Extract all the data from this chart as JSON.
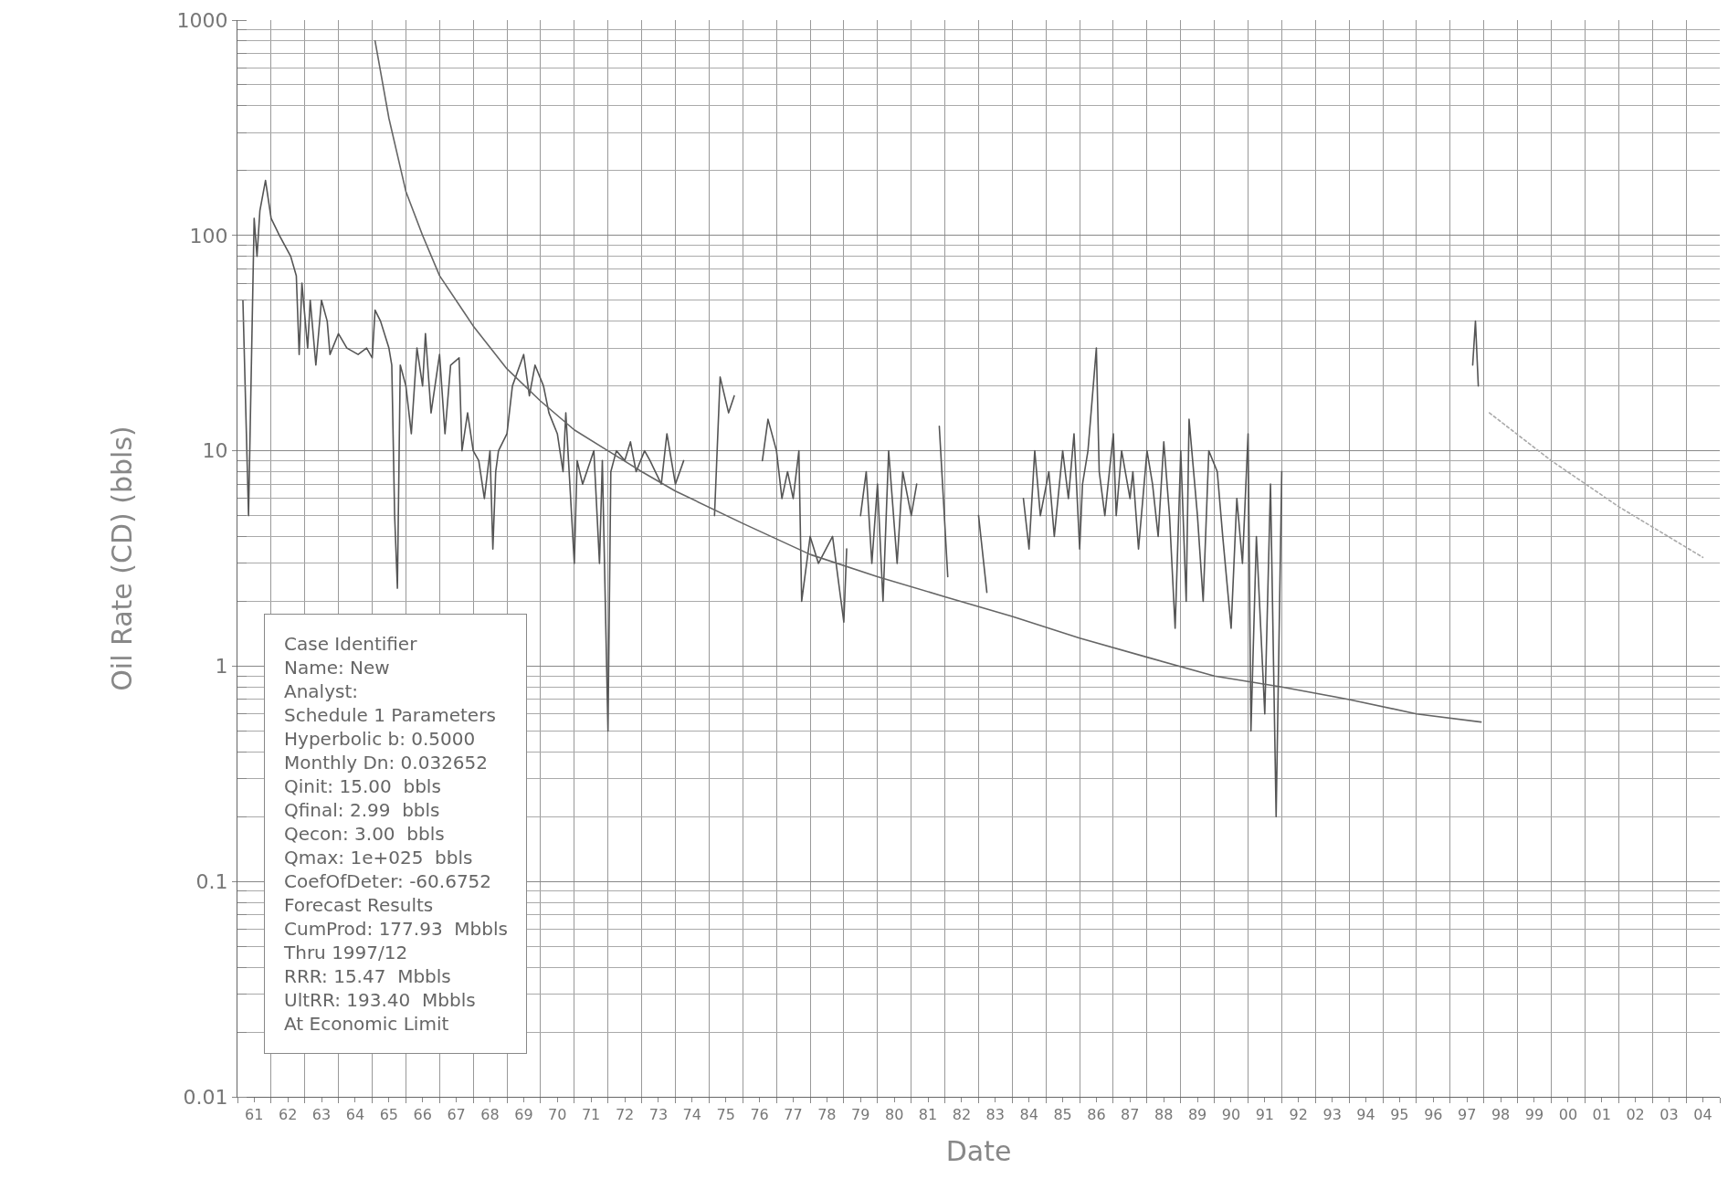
{
  "chart_data": {
    "type": "line",
    "xlabel": "Date",
    "ylabel": "Oil Rate (CD) (bbls)",
    "log": "y",
    "grid": true,
    "marker": "none",
    "xlim": [
      "1961-01",
      "2005-01"
    ],
    "xticks": [
      {
        "value": "1961-07",
        "label": "61"
      },
      {
        "value": "1962-07",
        "label": "62"
      },
      {
        "value": "1963-07",
        "label": "63"
      },
      {
        "value": "1964-07",
        "label": "64"
      },
      {
        "value": "1965-07",
        "label": "65"
      },
      {
        "value": "1966-07",
        "label": "66"
      },
      {
        "value": "1967-07",
        "label": "67"
      },
      {
        "value": "1968-07",
        "label": "68"
      },
      {
        "value": "1969-07",
        "label": "69"
      },
      {
        "value": "1970-07",
        "label": "70"
      },
      {
        "value": "1971-07",
        "label": "71"
      },
      {
        "value": "1972-07",
        "label": "72"
      },
      {
        "value": "1973-07",
        "label": "73"
      },
      {
        "value": "1974-07",
        "label": "74"
      },
      {
        "value": "1975-07",
        "label": "75"
      },
      {
        "value": "1976-07",
        "label": "76"
      },
      {
        "value": "1977-07",
        "label": "77"
      },
      {
        "value": "1978-07",
        "label": "78"
      },
      {
        "value": "1979-07",
        "label": "79"
      },
      {
        "value": "1980-07",
        "label": "80"
      },
      {
        "value": "1981-07",
        "label": "81"
      },
      {
        "value": "1982-07",
        "label": "82"
      },
      {
        "value": "1983-07",
        "label": "83"
      },
      {
        "value": "1984-07",
        "label": "84"
      },
      {
        "value": "1985-07",
        "label": "85"
      },
      {
        "value": "1986-07",
        "label": "86"
      },
      {
        "value": "1987-07",
        "label": "87"
      },
      {
        "value": "1988-07",
        "label": "88"
      },
      {
        "value": "1989-07",
        "label": "89"
      },
      {
        "value": "1990-07",
        "label": "90"
      },
      {
        "value": "1991-07",
        "label": "91"
      },
      {
        "value": "1992-07",
        "label": "92"
      },
      {
        "value": "1993-07",
        "label": "93"
      },
      {
        "value": "1994-07",
        "label": "94"
      },
      {
        "value": "1995-07",
        "label": "95"
      },
      {
        "value": "1996-07",
        "label": "96"
      },
      {
        "value": "1997-07",
        "label": "97"
      },
      {
        "value": "1998-07",
        "label": "98"
      },
      {
        "value": "1999-07",
        "label": "99"
      },
      {
        "value": "2000-07",
        "label": "00"
      },
      {
        "value": "2001-07",
        "label": "01"
      },
      {
        "value": "2002-07",
        "label": "02"
      },
      {
        "value": "2003-07",
        "label": "03"
      },
      {
        "value": "2004-07",
        "label": "04"
      }
    ],
    "ylim": [
      0.01,
      1000
    ],
    "yticks": [
      0.01,
      0.1,
      1,
      10,
      100,
      1000
    ],
    "series": [
      {
        "color": "#555555",
        "line_style": "solid",
        "x": [
          "1961-03",
          "1961-05",
          "1961-07",
          "1961-08",
          "1961-09",
          "1961-11",
          "1962-01",
          "1962-04",
          "1962-08",
          "1962-10",
          "1962-11",
          "1962-12",
          "1963-02",
          "1963-03",
          "1963-05",
          "1963-07",
          "1963-09",
          "1963-10",
          "1964-01",
          "1964-04",
          "1964-08",
          "1964-11",
          "1965-01",
          "1965-02",
          "1965-04",
          "1965-07",
          "1965-08",
          "1965-09",
          "1965-10",
          "1965-11",
          "1966-01",
          "1966-03",
          "1966-05",
          "1966-07",
          "1966-08",
          "1966-10",
          "1967-01",
          "1967-03",
          "1967-05",
          "1967-08",
          "1967-09",
          "1967-11",
          "1968-01",
          "1968-03",
          "1968-05",
          "1968-07",
          "1968-08",
          "1968-09",
          "1968-10",
          "1969-01",
          "1969-03",
          "1969-07",
          "1969-09",
          "1969-11",
          "1970-02",
          "1970-04",
          "1970-07",
          "1970-09",
          "1970-10",
          "1971-01",
          "1971-02",
          "1971-04",
          "1971-08",
          "1971-10",
          "1971-11",
          "1972-01",
          "1972-02",
          "1972-04",
          "1972-07",
          "1972-09",
          "1972-11",
          "1973-02",
          "1973-04",
          "1973-08",
          "1973-10",
          "1974-01",
          "1974-04",
          "1974-08",
          "1975-03",
          "1975-05",
          "1975-08",
          "1975-10",
          "1976-01",
          "1976-04",
          "1976-08",
          "1976-10",
          "1977-01",
          "1977-03",
          "1977-05",
          "1977-07",
          "1977-09",
          "1977-10",
          "1978-01",
          "1978-04",
          "1978-09",
          "1979-01",
          "1979-02",
          "1979-04",
          "1979-07",
          "1979-09",
          "1979-11",
          "1980-01",
          "1980-03",
          "1980-05",
          "1980-08",
          "1980-10",
          "1981-01",
          "1981-03",
          "1981-07",
          "1981-11",
          "1982-02",
          "1982-07",
          "1983-01",
          "1983-04",
          "1983-10",
          "1984-05",
          "1984-07",
          "1984-09",
          "1984-11",
          "1985-02",
          "1985-04",
          "1985-07",
          "1985-09",
          "1985-11",
          "1986-01",
          "1986-02",
          "1986-04",
          "1986-07",
          "1986-08",
          "1986-10",
          "1987-01",
          "1987-02",
          "1987-04",
          "1987-07",
          "1987-08",
          "1987-10",
          "1988-01",
          "1988-03",
          "1988-05",
          "1988-07",
          "1988-09",
          "1988-11",
          "1989-01",
          "1989-03",
          "1989-04",
          "1989-07",
          "1989-09",
          "1989-11",
          "1990-02",
          "1990-04",
          "1990-07",
          "1990-09",
          "1990-11",
          "1991-01",
          "1991-02",
          "1991-04",
          "1991-07",
          "1991-09",
          "1991-11",
          "1992-01",
          "1994-01",
          "1997-09",
          "1997-10",
          "1997-11"
        ],
        "values": [
          50,
          5,
          120,
          80,
          130,
          180,
          120,
          100,
          80,
          65,
          28,
          60,
          30,
          50,
          25,
          50,
          40,
          28,
          35,
          30,
          28,
          30,
          27,
          45,
          40,
          30,
          25,
          5,
          2.3,
          25,
          20,
          12,
          30,
          20,
          35,
          15,
          28,
          12,
          25,
          27,
          10,
          15,
          10,
          9,
          6,
          10,
          3.5,
          8,
          10,
          12,
          20,
          28,
          18,
          25,
          20,
          15,
          12,
          8,
          15,
          3,
          9,
          7,
          10,
          3,
          9,
          0.5,
          8,
          10,
          9,
          11,
          8,
          10,
          9,
          7,
          12,
          7,
          9,
          null,
          5,
          22,
          15,
          18,
          null,
          null,
          9,
          14,
          10,
          6,
          8,
          6,
          10,
          2,
          4,
          3,
          4,
          1.6,
          3.5,
          null,
          5,
          8,
          3,
          7,
          2,
          10,
          3,
          8,
          5,
          7,
          null,
          13,
          2.6,
          null,
          5,
          2.2,
          null,
          6,
          3.5,
          10,
          5,
          8,
          4,
          10,
          6,
          12,
          3.5,
          7,
          10,
          30,
          8,
          5,
          12,
          5,
          10,
          6,
          8,
          3.5,
          10,
          7,
          4,
          11,
          5,
          1.5,
          10,
          2,
          14,
          5,
          2,
          10,
          8,
          4,
          1.5,
          6,
          3,
          12,
          0.5,
          4,
          0.6,
          7,
          0.2,
          8,
          null,
          25,
          40,
          20
        ]
      },
      {
        "color": "#666666",
        "line_style": "solid",
        "x": [
          "1965-02",
          "1965-07",
          "1966-01",
          "1966-07",
          "1967-01",
          "1968-01",
          "1969-01",
          "1970-01",
          "1971-01",
          "1972-01",
          "1973-01",
          "1974-01",
          "1976-01",
          "1978-01",
          "1980-01",
          "1982-01",
          "1984-01",
          "1986-01",
          "1988-01",
          "1990-01",
          "1992-01",
          "1994-01",
          "1996-01",
          "1997-12"
        ],
        "values": [
          800,
          350,
          160,
          100,
          65,
          38,
          24,
          17,
          12.5,
          10,
          8,
          6.5,
          4.6,
          3.3,
          2.6,
          2.1,
          1.7,
          1.35,
          1.1,
          0.9,
          0.8,
          0.7,
          0.6,
          0.55
        ]
      },
      {
        "color": "#aaaaaa",
        "line_style": "dotted",
        "x": [
          "1998-03",
          "2000-01",
          "2002-01",
          "2004-07"
        ],
        "values": [
          15,
          9,
          5.5,
          3.2
        ]
      }
    ],
    "annotations": [
      "Case Identifier",
      "Name: New",
      "Analyst:",
      "Schedule 1 Parameters",
      "Hyperbolic b: 0.5000",
      "Monthly Dn: 0.032652",
      "Qinit: 15.00  bbls",
      "Qfinal: 2.99  bbls",
      "Qecon: 3.00  bbls",
      "Qmax: 1e+025  bbls",
      "CoefOfDeter: -60.6752",
      "Forecast Results",
      "CumProd: 177.93  Mbbls",
      "Thru 1997/12",
      "RRR: 15.47  Mbbls",
      "UltRR: 193.40  Mbbls",
      "At Economic Limit"
    ]
  }
}
